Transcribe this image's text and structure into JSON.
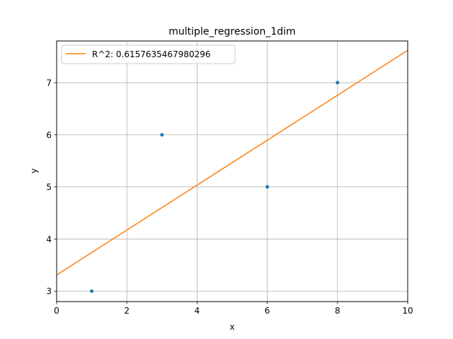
{
  "chart_data": {
    "type": "scatter",
    "title": "multiple_regression_1dim",
    "xlabel": "x",
    "ylabel": "y",
    "xlim": [
      0,
      10
    ],
    "ylim": [
      2.8,
      7.8
    ],
    "xticks": [
      "0",
      "2",
      "4",
      "6",
      "8",
      "10"
    ],
    "yticks": [
      "3",
      "4",
      "5",
      "6",
      "7"
    ],
    "grid": true,
    "legend_position": "upper-left",
    "series": [
      {
        "kind": "points",
        "color": "#1f77b4",
        "x": [
          1,
          3,
          6,
          8
        ],
        "y": [
          3,
          6,
          5,
          7
        ]
      },
      {
        "kind": "line",
        "name": "R^2: 0.6157635467980296",
        "color": "#ff7f0e",
        "x": [
          0,
          10
        ],
        "y": [
          3.31,
          7.62
        ]
      }
    ]
  }
}
